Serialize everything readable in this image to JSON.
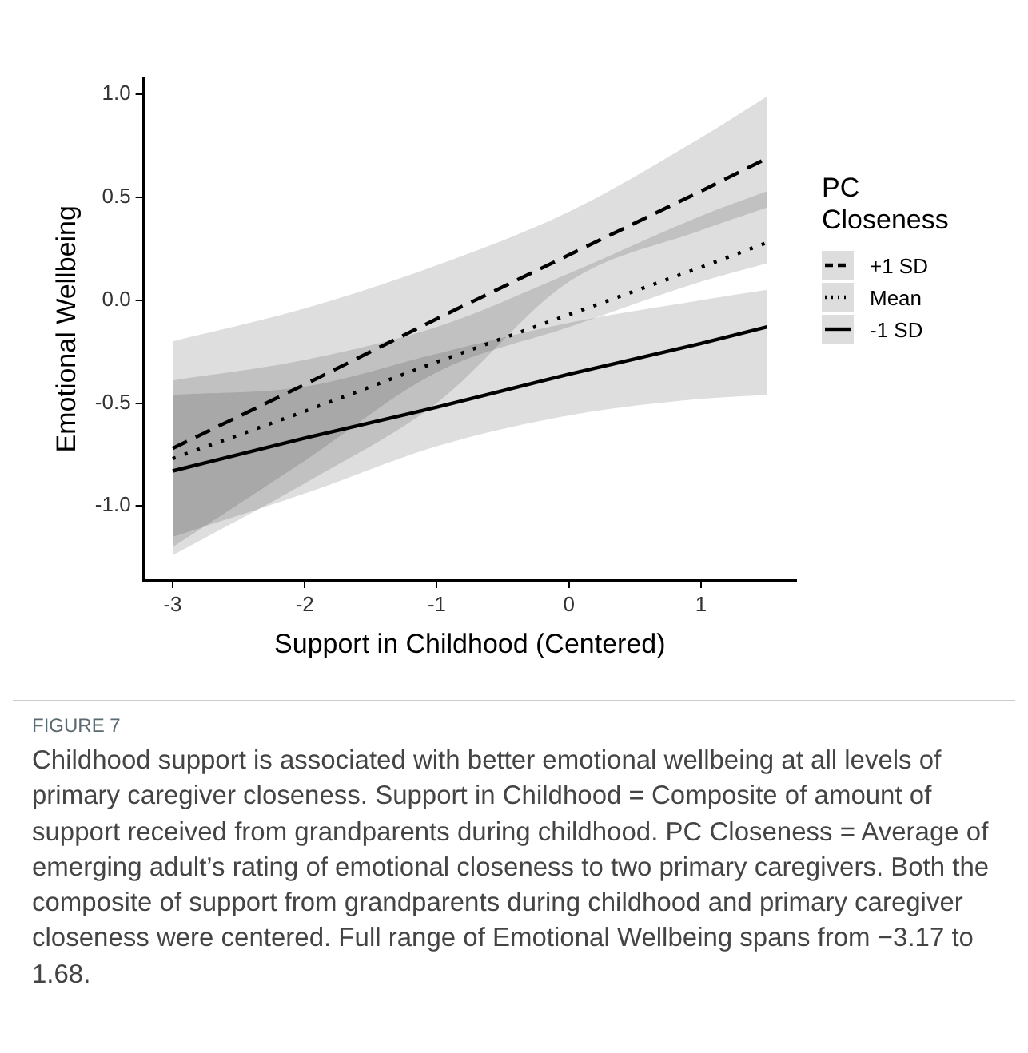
{
  "chart_data": {
    "type": "line",
    "title": "FIGURE 7",
    "xlabel": "Support in Childhood (Centered)",
    "ylabel": "Emotional Wellbeing",
    "legend_title": "PC Closeness",
    "legend": "right",
    "grid": false,
    "xlim": [
      -3.22,
      1.72
    ],
    "xticks": [
      -3,
      -2,
      -1,
      0,
      1
    ],
    "ylim": [
      -1.36,
      1.08
    ],
    "yticks": [
      {
        "value": -1,
        "label": "-1.0"
      },
      {
        "value": -0.5,
        "label": "-0.5"
      },
      {
        "value": 0,
        "label": "0.0"
      },
      {
        "value": 0.5,
        "label": "0.5"
      },
      {
        "value": 1,
        "label": "1.0"
      }
    ],
    "series": [
      {
        "name": "+1 SD",
        "color": "#000000",
        "line_style": "dashed",
        "x": [
          -3,
          -2,
          -1,
          0,
          1,
          1.5
        ],
        "values": [
          -0.72,
          -0.41,
          -0.09,
          0.22,
          0.53,
          0.69
        ],
        "lower": [
          -1.24,
          -0.89,
          -0.5,
          0.09,
          0.34,
          0.45
        ],
        "upper": [
          -0.2,
          -0.04,
          0.17,
          0.43,
          0.79,
          0.99
        ]
      },
      {
        "name": "Mean",
        "color": "#000000",
        "line_style": "dotted",
        "x": [
          -3,
          -2,
          -1,
          0,
          1,
          1.5
        ],
        "values": [
          -0.77,
          -0.54,
          -0.3,
          -0.07,
          0.16,
          0.28
        ],
        "lower": [
          -1.2,
          -0.78,
          -0.35,
          -0.13,
          0.09,
          0.18
        ],
        "upper": [
          -0.39,
          -0.29,
          -0.13,
          0.13,
          0.41,
          0.53
        ]
      },
      {
        "name": "-1 SD",
        "color": "#000000",
        "line_style": "solid",
        "x": [
          -3,
          -2,
          -1,
          0,
          1,
          1.5
        ],
        "values": [
          -0.83,
          -0.67,
          -0.52,
          -0.36,
          -0.21,
          -0.13
        ],
        "lower": [
          -1.15,
          -0.94,
          -0.71,
          -0.56,
          -0.48,
          -0.46
        ],
        "upper": [
          -0.46,
          -0.42,
          -0.26,
          -0.11,
          0,
          0.05
        ]
      }
    ],
    "annotations": [
      "Childhood support is associated with better emotional wellbeing at all levels of primary caregiver closeness. Support in Childhood = Composite of amount of support received from grandparents during childhood. PC Closeness = Average of emerging adult’s rating of emotional closeness to two primary caregivers. Both the composite of support from grandparents during childhood and primary caregiver closeness were centered. Full range of Emotional Wellbeing spans from −3.17 to 1.68."
    ]
  }
}
